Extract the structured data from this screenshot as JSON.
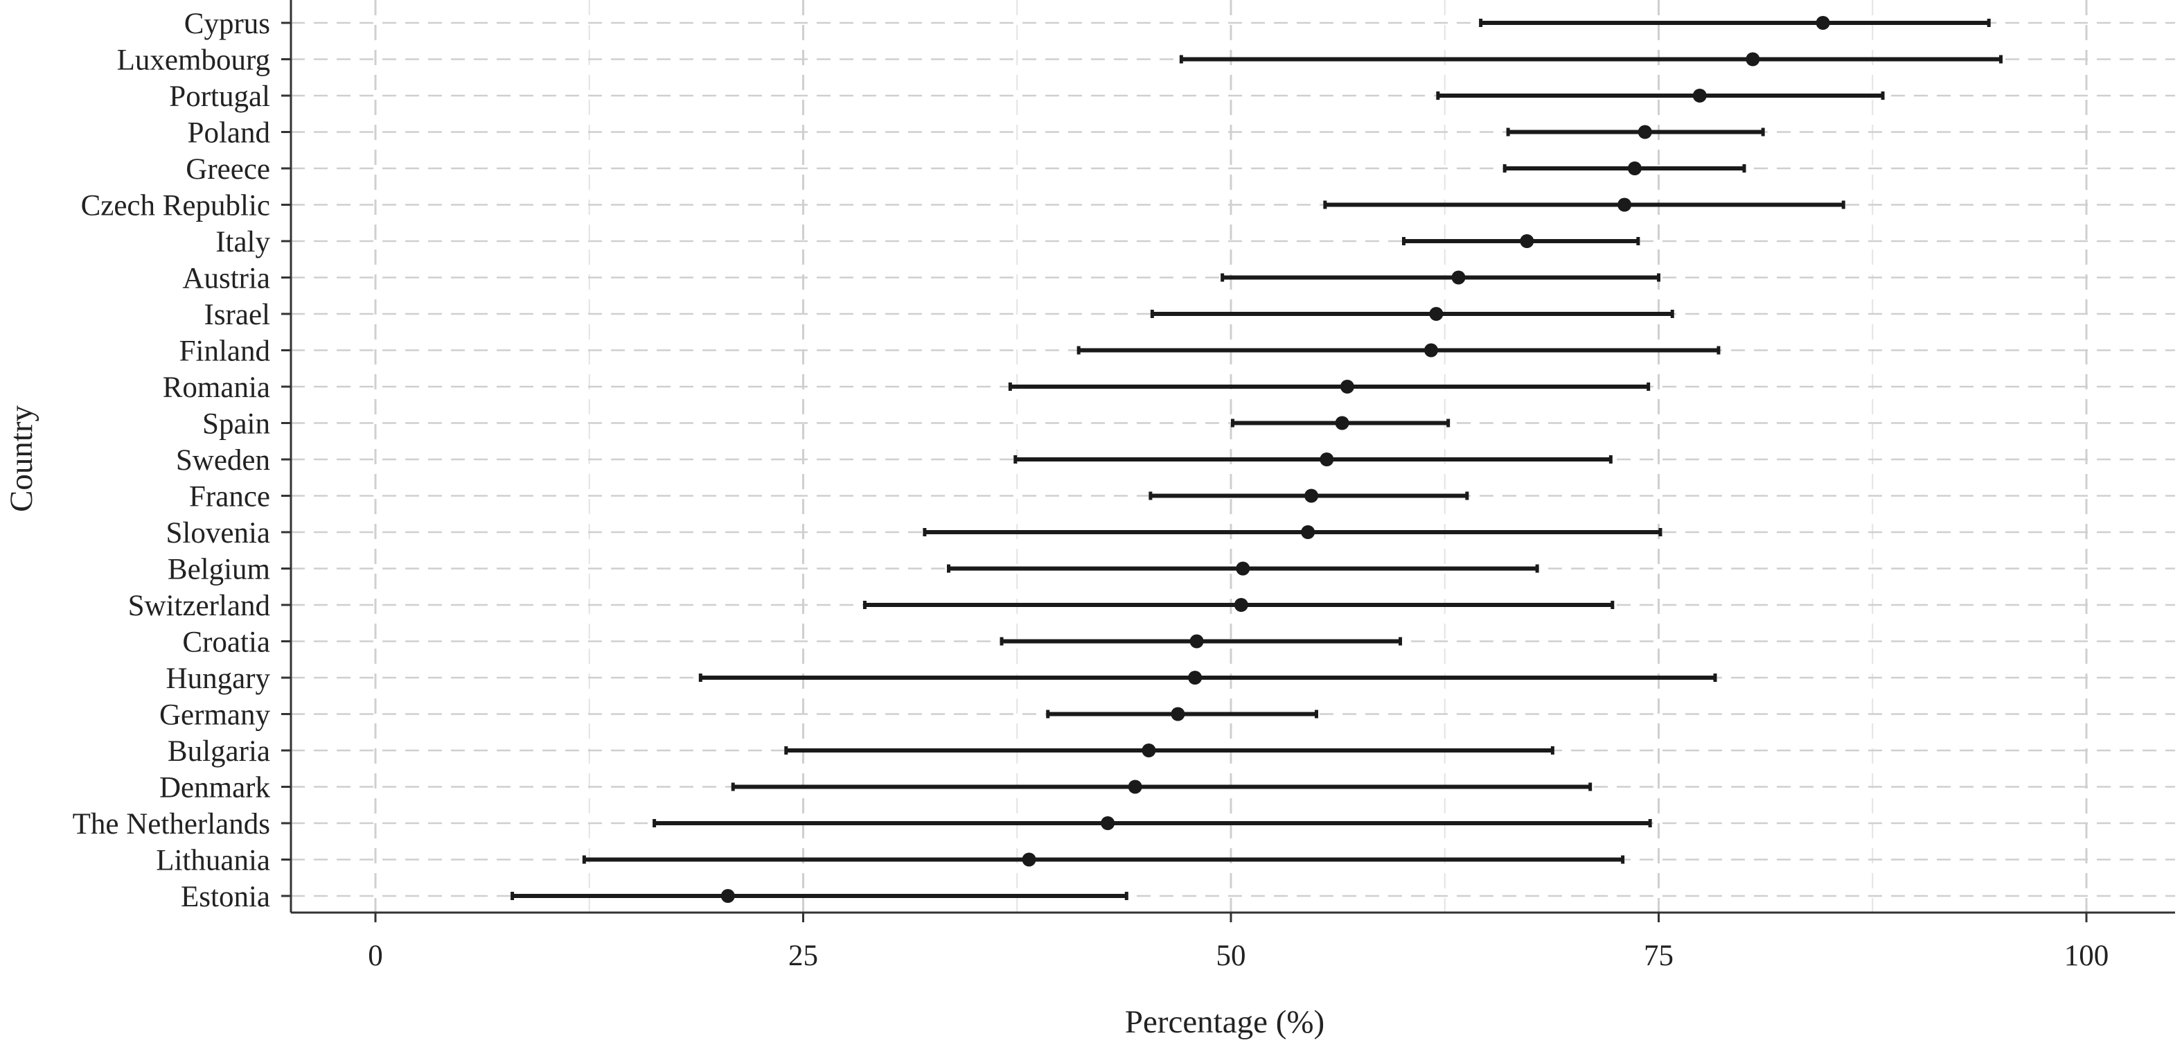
{
  "chart_data": {
    "type": "forest",
    "xlabel": "Percentage (%)",
    "ylabel": "Country",
    "xlim": [
      -5,
      105
    ],
    "xticks": [
      0,
      25,
      50,
      75,
      100
    ],
    "grid": true,
    "point_color": "#1a1a1a",
    "grid_color": "#cfcfcf",
    "rows": [
      {
        "country": "Cyprus",
        "estimate": 84.6,
        "low": 64.6,
        "high": 94.3
      },
      {
        "country": "Luxembourg",
        "estimate": 80.5,
        "low": 47.1,
        "high": 95.0
      },
      {
        "country": "Portugal",
        "estimate": 77.4,
        "low": 62.1,
        "high": 88.1
      },
      {
        "country": "Poland",
        "estimate": 74.2,
        "low": 66.2,
        "high": 81.1
      },
      {
        "country": "Greece",
        "estimate": 73.6,
        "low": 66.0,
        "high": 80.0
      },
      {
        "country": "Czech Republic",
        "estimate": 73.0,
        "low": 55.5,
        "high": 85.8
      },
      {
        "country": "Italy",
        "estimate": 67.3,
        "low": 60.1,
        "high": 73.8
      },
      {
        "country": "Austria",
        "estimate": 63.3,
        "low": 49.5,
        "high": 75.0
      },
      {
        "country": "Israel",
        "estimate": 62.0,
        "low": 45.4,
        "high": 75.8
      },
      {
        "country": "Finland",
        "estimate": 61.7,
        "low": 41.1,
        "high": 78.5
      },
      {
        "country": "Romania",
        "estimate": 56.8,
        "low": 37.1,
        "high": 74.4
      },
      {
        "country": "Spain",
        "estimate": 56.5,
        "low": 50.1,
        "high": 62.7
      },
      {
        "country": "Sweden",
        "estimate": 55.6,
        "low": 37.4,
        "high": 72.2
      },
      {
        "country": "France",
        "estimate": 54.7,
        "low": 45.3,
        "high": 63.8
      },
      {
        "country": "Slovenia",
        "estimate": 54.5,
        "low": 32.1,
        "high": 75.1
      },
      {
        "country": "Belgium",
        "estimate": 50.7,
        "low": 33.5,
        "high": 67.9
      },
      {
        "country": "Switzerland",
        "estimate": 50.6,
        "low": 28.6,
        "high": 72.3
      },
      {
        "country": "Croatia",
        "estimate": 48.0,
        "low": 36.6,
        "high": 59.9
      },
      {
        "country": "Hungary",
        "estimate": 47.9,
        "low": 19.0,
        "high": 78.3
      },
      {
        "country": "Germany",
        "estimate": 46.9,
        "low": 39.3,
        "high": 55.0
      },
      {
        "country": "Bulgaria",
        "estimate": 45.2,
        "low": 24.0,
        "high": 68.8
      },
      {
        "country": "Denmark",
        "estimate": 44.4,
        "low": 20.9,
        "high": 71.0
      },
      {
        "country": "The Netherlands",
        "estimate": 42.8,
        "low": 16.3,
        "high": 74.5
      },
      {
        "country": "Lithuania",
        "estimate": 38.2,
        "low": 12.2,
        "high": 72.9
      },
      {
        "country": "Estonia",
        "estimate": 20.6,
        "low": 8.0,
        "high": 43.9
      }
    ]
  }
}
